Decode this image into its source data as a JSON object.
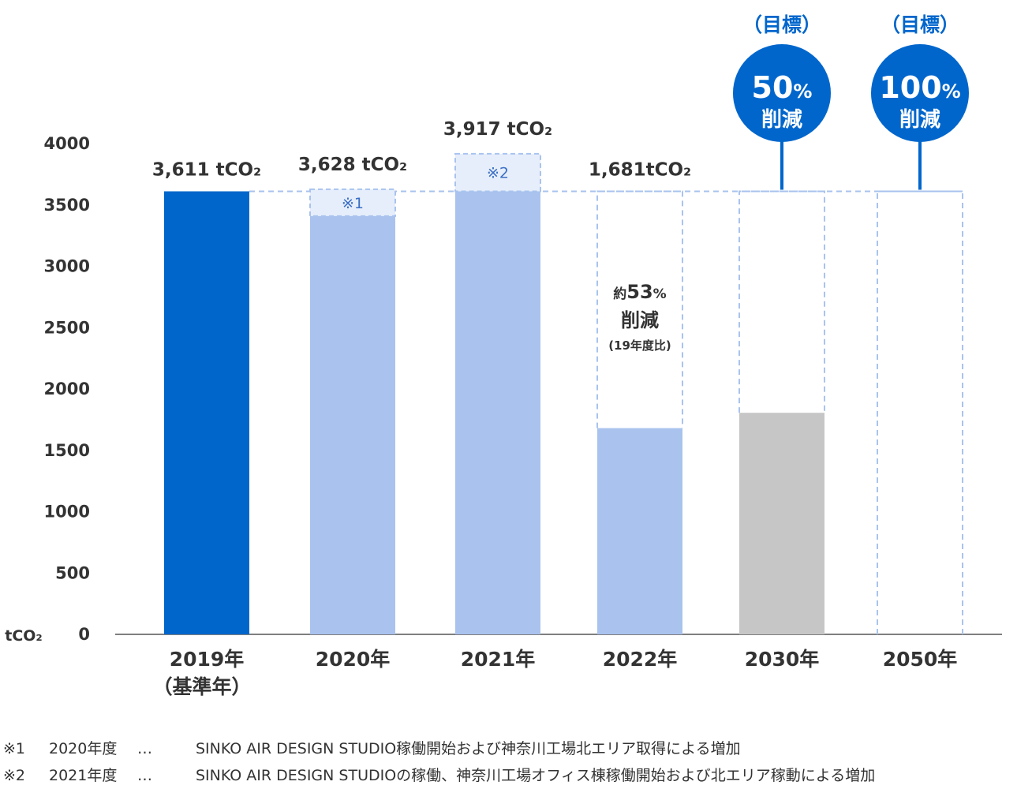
{
  "chart_data": {
    "type": "bar",
    "unit_label": "tCO₂",
    "categories": [
      "2019年",
      "2020年",
      "2021年",
      "2022年",
      "2030年",
      "2050年"
    ],
    "category_sublabels": [
      "（基準年）",
      "",
      "",
      "",
      "",
      ""
    ],
    "values": [
      3611,
      3628,
      3917,
      1681,
      1806,
      0
    ],
    "value_labels": [
      "3,611 tCO₂",
      "3,628 tCO₂",
      "3,917 tCO₂",
      "1,681tCO₂",
      "",
      ""
    ],
    "increase_markers": [
      {
        "category": "2020年",
        "label": "※1"
      },
      {
        "category": "2021年",
        "label": "※2"
      }
    ],
    "reduction_annotation": {
      "category": "2022年",
      "line1_prefix": "約",
      "line1_value": "53",
      "line1_unit": "%",
      "line2": "削減",
      "line3": "(19年度比)"
    },
    "targets": [
      {
        "category": "2030年",
        "header": "（目標）",
        "value": "50",
        "unit": "%",
        "text": "削減"
      },
      {
        "category": "2050年",
        "header": "（目標）",
        "value": "100",
        "unit": "%",
        "text": "削減"
      }
    ],
    "ylim": [
      0,
      4000
    ],
    "yticks": [
      0,
      500,
      1000,
      1500,
      2000,
      2500,
      3000,
      3500,
      4000
    ],
    "baseline_value": 3611,
    "grid": false,
    "colors": {
      "base_year": "#0066cc",
      "actual": "#a9c3ee",
      "target_2030": "#c6c6c6",
      "dashed": "#a9c3ee",
      "marker_fill": "#e6eefb",
      "marker_text": "#3b6fc4",
      "target_circle": "#0066cc",
      "text": "#333333"
    }
  },
  "footnotes": [
    {
      "mark": "※1",
      "year": "2020年度",
      "sep": "…",
      "text": "SINKO AIR DESIGN STUDIO稼働開始および神奈川工場北エリア取得による増加"
    },
    {
      "mark": "※2",
      "year": "2021年度",
      "sep": "…",
      "text": "SINKO AIR DESIGN STUDIOの稼働、神奈川工場オフィス棟稼働開始および北エリア稼動による増加"
    }
  ]
}
